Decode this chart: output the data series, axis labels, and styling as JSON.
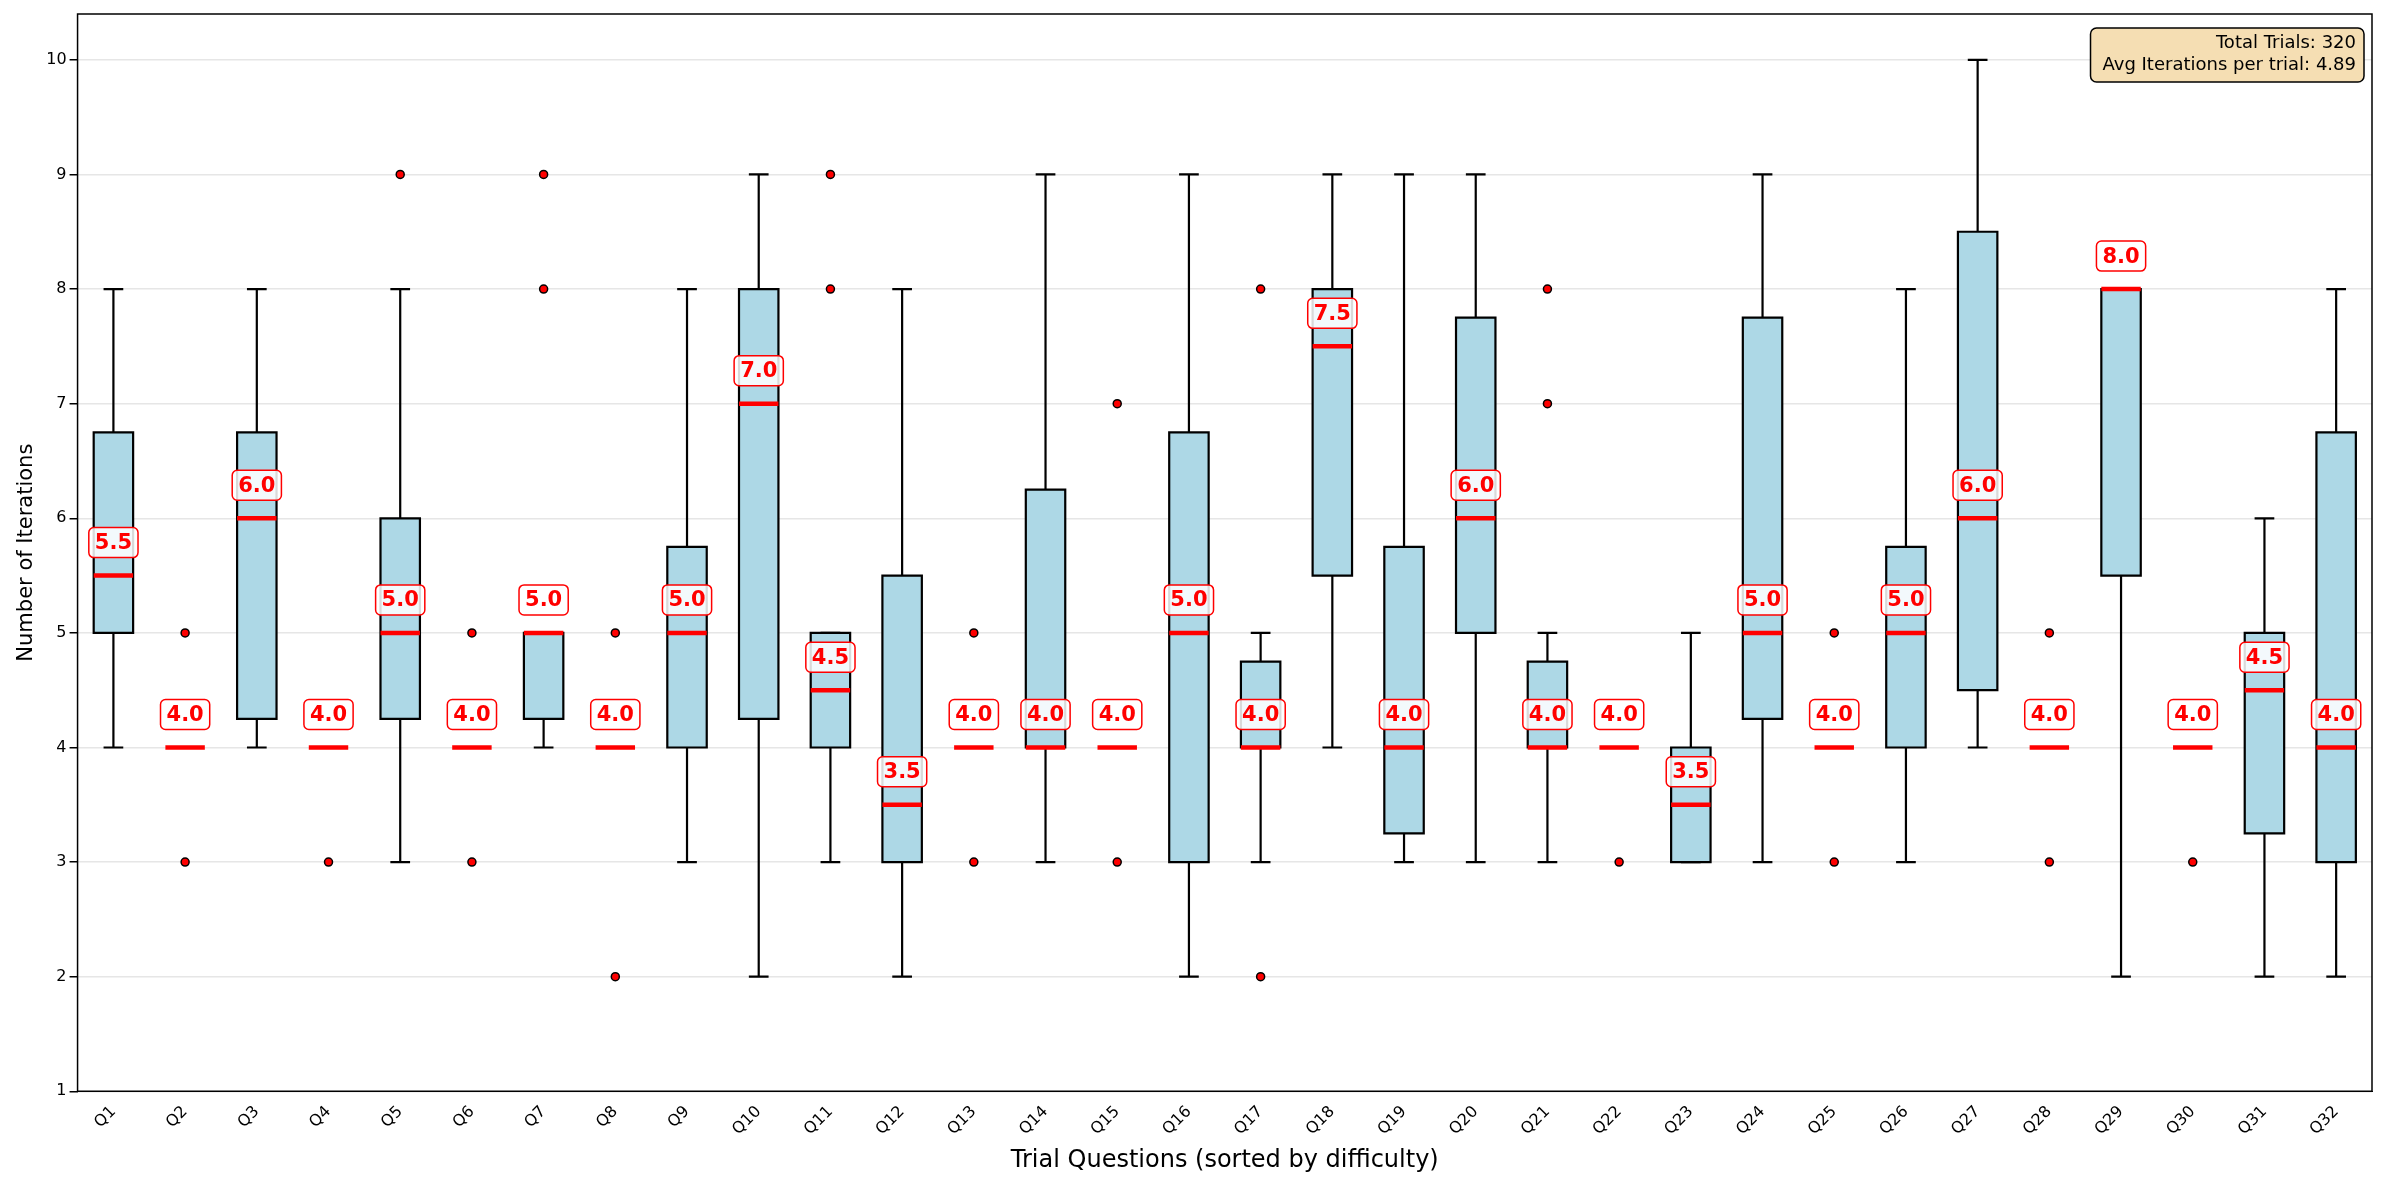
{
  "chart_data": {
    "type": "box",
    "xlabel": "Trial Questions (sorted by difficulty)",
    "ylabel": "Number of Iterations",
    "annotations": [
      "Total Trials: 320\nAvg Iterations per trial: 4.89"
    ],
    "categories": [
      "Q1",
      "Q2",
      "Q3",
      "Q4",
      "Q5",
      "Q6",
      "Q7",
      "Q8",
      "Q9",
      "Q10",
      "Q11",
      "Q12",
      "Q13",
      "Q14",
      "Q15",
      "Q16",
      "Q17",
      "Q18",
      "Q19",
      "Q20",
      "Q21",
      "Q22",
      "Q23",
      "Q24",
      "Q25",
      "Q26",
      "Q27",
      "Q28",
      "Q29",
      "Q30",
      "Q31",
      "Q32"
    ],
    "colors": [
      "#add8e6",
      "#ff0000",
      "#add8e6",
      "#ff0000",
      "#add8e6",
      "#ff0000",
      "#add8e6",
      "#ff0000",
      "#add8e6",
      "#add8e6",
      "#add8e6",
      "#add8e6",
      "#ff0000",
      "#add8e6",
      "#ff0000",
      "#add8e6",
      "#add8e6",
      "#add8e6",
      "#add8e6",
      "#add8e6",
      "#add8e6",
      "#ff0000",
      "#add8e6",
      "#add8e6",
      "#ff0000",
      "#add8e6",
      "#add8e6",
      "#ff0000",
      "#add8e6",
      "#ff0000",
      "#add8e6",
      "#add8e6"
    ],
    "boxes": [
      {
        "low": 4,
        "q1": 5,
        "median": 5.5,
        "q3": 6.75,
        "high": 8
      },
      {
        "low": 4,
        "q1": 4,
        "median": 4,
        "q3": 4,
        "high": 4,
        "outliers": [
          5,
          3
        ]
      },
      {
        "low": 4,
        "q1": 4.25,
        "median": 6,
        "q3": 6.75,
        "high": 8
      },
      {
        "low": 4,
        "q1": 4,
        "median": 4,
        "q3": 4,
        "high": 4,
        "outliers": [
          3
        ]
      },
      {
        "low": 3,
        "q1": 4.25,
        "median": 5,
        "q3": 6,
        "high": 8,
        "outliers": [
          9
        ]
      },
      {
        "low": 4,
        "q1": 4,
        "median": 4,
        "q3": 4,
        "high": 4,
        "outliers": [
          5,
          3
        ]
      },
      {
        "low": 4,
        "q1": 4.25,
        "median": 5,
        "q3": 5,
        "high": 5,
        "outliers": [
          8,
          9
        ]
      },
      {
        "low": 4,
        "q1": 4,
        "median": 4,
        "q3": 4,
        "high": 4,
        "outliers": [
          5,
          2
        ]
      },
      {
        "low": 3,
        "q1": 4,
        "median": 5,
        "q3": 5.75,
        "high": 8
      },
      {
        "low": 2,
        "q1": 4.25,
        "median": 7,
        "q3": 8,
        "high": 9
      },
      {
        "low": 3,
        "q1": 4,
        "median": 4.5,
        "q3": 5,
        "high": 5,
        "outliers": [
          8,
          9
        ]
      },
      {
        "low": 2,
        "q1": 3,
        "median": 3.5,
        "q3": 5.5,
        "high": 8
      },
      {
        "low": 4,
        "q1": 4,
        "median": 4,
        "q3": 4,
        "high": 4,
        "outliers": [
          5,
          3
        ]
      },
      {
        "low": 3,
        "q1": 4,
        "median": 4,
        "q3": 6.25,
        "high": 9
      },
      {
        "low": 4,
        "q1": 4,
        "median": 4,
        "q3": 4,
        "high": 4,
        "outliers": [
          7,
          3
        ]
      },
      {
        "low": 2,
        "q1": 3,
        "median": 5,
        "q3": 6.75,
        "high": 9
      },
      {
        "low": 3,
        "q1": 4,
        "median": 4,
        "q3": 4.75,
        "high": 5,
        "outliers": [
          8,
          2
        ]
      },
      {
        "low": 4,
        "q1": 5.5,
        "median": 7.5,
        "q3": 8,
        "high": 9
      },
      {
        "low": 3,
        "q1": 3.25,
        "median": 4,
        "q3": 5.75,
        "high": 9
      },
      {
        "low": 3,
        "q1": 5,
        "median": 6,
        "q3": 7.75,
        "high": 9
      },
      {
        "low": 3,
        "q1": 4,
        "median": 4,
        "q3": 4.75,
        "high": 5,
        "outliers": [
          8,
          7
        ]
      },
      {
        "low": 4,
        "q1": 4,
        "median": 4,
        "q3": 4,
        "high": 4,
        "outliers": [
          3
        ]
      },
      {
        "low": 3,
        "q1": 3,
        "median": 3.5,
        "q3": 4,
        "high": 5
      },
      {
        "low": 3,
        "q1": 4.25,
        "median": 5,
        "q3": 7.75,
        "high": 9
      },
      {
        "low": 4,
        "q1": 4,
        "median": 4,
        "q3": 4,
        "high": 4,
        "outliers": [
          5,
          3
        ]
      },
      {
        "low": 3,
        "q1": 4,
        "median": 5,
        "q3": 5.75,
        "high": 8
      },
      {
        "low": 4,
        "q1": 4.5,
        "median": 6,
        "q3": 8.5,
        "high": 10
      },
      {
        "low": 4,
        "q1": 4,
        "median": 4,
        "q3": 4,
        "high": 4,
        "outliers": [
          5,
          3
        ]
      },
      {
        "low": 2,
        "q1": 5.5,
        "median": 8,
        "q3": 8,
        "high": 8
      },
      {
        "low": 4,
        "q1": 4,
        "median": 4,
        "q3": 4,
        "high": 4,
        "outliers": [
          3
        ]
      },
      {
        "low": 2,
        "q1": 3.25,
        "median": 4.5,
        "q3": 5,
        "high": 6
      },
      {
        "low": 2,
        "q1": 3,
        "median": 4,
        "q3": 6.75,
        "high": 8
      }
    ],
    "value_labels": [
      "5.5",
      "4.0",
      "6.0",
      "4.0",
      "5.0",
      "4.0",
      "5.0",
      "4.0",
      "5.0",
      "7.0",
      "4.5",
      "3.5",
      "4.0",
      "4.0",
      "4.0",
      "5.0",
      "4.0",
      "7.5",
      "4.0",
      "6.0",
      "4.0",
      "4.0",
      "3.5",
      "5.0",
      "4.0",
      "5.0",
      "6.0",
      "4.0",
      "8.0",
      "4.0",
      "4.5",
      "4.0"
    ],
    "ylim": [
      1,
      10.4
    ],
    "yticks": [
      1,
      2,
      3,
      4,
      5,
      6,
      7,
      8,
      9,
      10
    ],
    "grid": "y"
  }
}
